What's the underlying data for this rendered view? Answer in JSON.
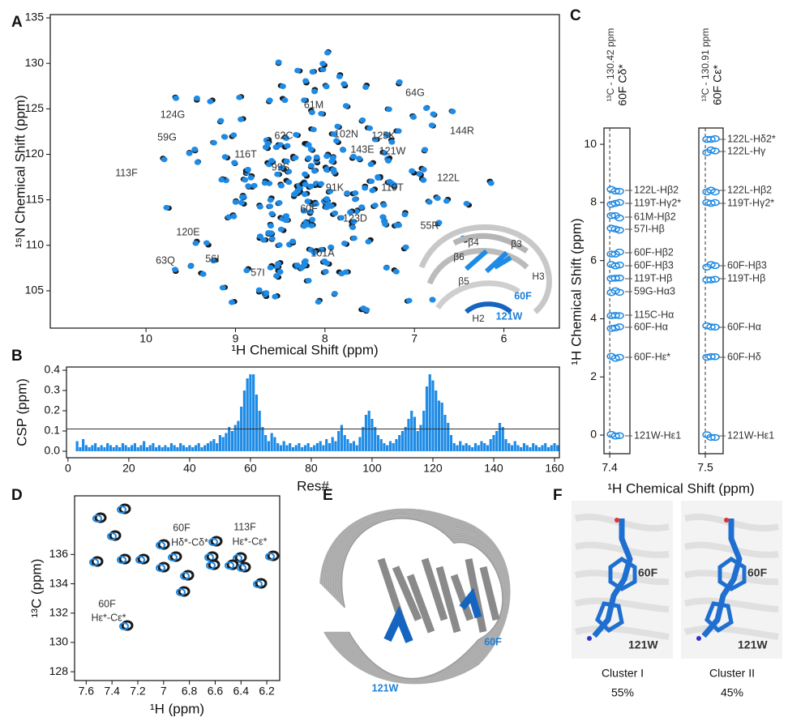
{
  "panel_labels": [
    "A",
    "B",
    "C",
    "D",
    "E",
    "F"
  ],
  "panel_a": {
    "xlabel": "¹H Chemical Shift (ppm)",
    "ylabel": "¹⁵N Chemical Shift (ppm)",
    "xlim": [
      11.07,
      5.38
    ],
    "ylim": [
      100.9,
      135.36
    ],
    "xticks": [
      10,
      9,
      8,
      7,
      6
    ],
    "yticks": [
      105,
      110,
      115,
      120,
      125,
      130,
      135
    ],
    "peak_labels": [
      "124G",
      "61M",
      "64G",
      "62C",
      "102N",
      "125K",
      "144R",
      "59G",
      "116T",
      "143E",
      "121W",
      "99S",
      "113F",
      "122L",
      "91K",
      "119T",
      "60F",
      "123D",
      "55R",
      "120E",
      "56I",
      "101A",
      "63Q",
      "57I"
    ],
    "inset_labels": [
      "β4",
      "β3",
      "β6",
      "β5",
      "H3",
      "H2"
    ],
    "inset_highlight": [
      "60F",
      "121W"
    ]
  },
  "chart_data": {
    "type": "bar",
    "xlabel": "Res#",
    "ylabel": "CSP (ppm)",
    "color": "#1e8be6",
    "xlim": [
      -0.5,
      161.6
    ],
    "ylim": [
      -0.032,
      0.416
    ],
    "xticks": [
      0,
      20,
      40,
      60,
      80,
      100,
      120,
      140,
      160
    ],
    "yticks": [
      {
        "value": 0,
        "label": "0.0"
      },
      {
        "value": 0.1,
        "label": "0.1"
      },
      {
        "value": 0.2,
        "label": "0.2"
      },
      {
        "value": 0.3,
        "label": "0.3"
      },
      {
        "value": 0.4,
        "label": "0.4"
      }
    ],
    "threshold": 0.11,
    "x": [
      3,
      4,
      5,
      6,
      7,
      8,
      9,
      10,
      11,
      12,
      13,
      14,
      15,
      16,
      17,
      18,
      19,
      20,
      21,
      22,
      23,
      24,
      25,
      26,
      27,
      28,
      29,
      30,
      31,
      32,
      33,
      34,
      35,
      36,
      37,
      38,
      39,
      40,
      41,
      42,
      43,
      44,
      45,
      46,
      47,
      48,
      49,
      50,
      51,
      52,
      53,
      54,
      55,
      56,
      57,
      58,
      59,
      60,
      61,
      62,
      63,
      64,
      65,
      66,
      67,
      68,
      69,
      70,
      71,
      72,
      73,
      74,
      75,
      76,
      77,
      78,
      79,
      80,
      81,
      82,
      83,
      84,
      85,
      86,
      87,
      88,
      89,
      90,
      91,
      92,
      93,
      94,
      95,
      96,
      97,
      98,
      99,
      100,
      101,
      102,
      103,
      104,
      105,
      106,
      107,
      108,
      109,
      110,
      111,
      112,
      113,
      114,
      115,
      116,
      117,
      118,
      119,
      120,
      121,
      122,
      123,
      124,
      125,
      126,
      127,
      128,
      129,
      130,
      131,
      132,
      133,
      134,
      135,
      136,
      137,
      138,
      139,
      140,
      141,
      142,
      143,
      144,
      145,
      146,
      147,
      148,
      149,
      150,
      151,
      152,
      153,
      154,
      155,
      156,
      157,
      158,
      159,
      160,
      161
    ],
    "values": [
      0.05,
      0.02,
      0.06,
      0.03,
      0.02,
      0.03,
      0.04,
      0.02,
      0.03,
      0.02,
      0.04,
      0.03,
      0.02,
      0.03,
      0.02,
      0.04,
      0.03,
      0.02,
      0.03,
      0.04,
      0.02,
      0.03,
      0.05,
      0.02,
      0.03,
      0.04,
      0.02,
      0.03,
      0.02,
      0.03,
      0.02,
      0.04,
      0.03,
      0.02,
      0.04,
      0.03,
      0.02,
      0.03,
      0.02,
      0.03,
      0.04,
      0.02,
      0.03,
      0.04,
      0.05,
      0.06,
      0.04,
      0.08,
      0.07,
      0.09,
      0.12,
      0.1,
      0.13,
      0.15,
      0.22,
      0.3,
      0.36,
      0.38,
      0.38,
      0.28,
      0.2,
      0.12,
      0.08,
      0.05,
      0.09,
      0.07,
      0.04,
      0.03,
      0.05,
      0.03,
      0.04,
      0.02,
      0.03,
      0.04,
      0.02,
      0.03,
      0.04,
      0.02,
      0.03,
      0.04,
      0.05,
      0.03,
      0.06,
      0.04,
      0.07,
      0.05,
      0.1,
      0.13,
      0.08,
      0.06,
      0.04,
      0.05,
      0.03,
      0.07,
      0.12,
      0.18,
      0.2,
      0.16,
      0.12,
      0.08,
      0.06,
      0.04,
      0.03,
      0.05,
      0.04,
      0.06,
      0.08,
      0.1,
      0.12,
      0.16,
      0.2,
      0.17,
      0.1,
      0.13,
      0.2,
      0.32,
      0.38,
      0.35,
      0.3,
      0.25,
      0.24,
      0.18,
      0.14,
      0.08,
      0.04,
      0.03,
      0.05,
      0.03,
      0.04,
      0.03,
      0.02,
      0.04,
      0.03,
      0.05,
      0.04,
      0.03,
      0.06,
      0.08,
      0.1,
      0.14,
      0.12,
      0.06,
      0.04,
      0.03,
      0.05,
      0.03,
      0.02,
      0.04,
      0.03,
      0.02,
      0.04,
      0.03,
      0.02,
      0.03,
      0.04,
      0.02,
      0.03,
      0.04,
      0.03
    ]
  },
  "panel_c": {
    "xlabel": "¹H Chemical Shift (ppm)",
    "ylabel": "¹H Chemical Shift (ppm)",
    "ylim": [
      -0.64,
      10.56
    ],
    "yticks": [
      0,
      2,
      4,
      6,
      8,
      10
    ],
    "strips": [
      {
        "title": "¹³C - 130.42 ppm",
        "atom": "60F Cδ*",
        "xlim": [
          7.42,
          7.33
        ],
        "xtick": 7.4,
        "labels": [
          "122L-Hβ2",
          "119T-Hγ2*",
          "61M-Hβ2",
          "57I-Hβ",
          "60F-Hβ2",
          "60F-Hβ3",
          "119T-Hβ",
          "59G-Hα3",
          "115C-Hα",
          "60F-Hα",
          "60F-Hε*",
          "121W-Hε1"
        ]
      },
      {
        "title": "¹³C - 130.91 ppm",
        "atom": "60F Cε*",
        "xlim": [
          7.52,
          7.445
        ],
        "xtick": 7.5,
        "labels": [
          "122L-Hδ2*",
          "122L-Hγ",
          "122L-Hβ2",
          "119T-Hγ2*",
          "60F-Hβ3",
          "119T-Hβ",
          "60F-Hα",
          "60F-Hδ",
          "121W-Hε1"
        ]
      }
    ]
  },
  "panel_d": {
    "xlabel": "¹H (ppm)",
    "ylabel": "¹³C (ppm)",
    "xlim": [
      7.69,
      6.1
    ],
    "ylim": [
      127.4,
      140
    ],
    "xticks": [
      7.6,
      7.4,
      7.2,
      7,
      6.8,
      6.6,
      6.4,
      6.2
    ],
    "yticks": [
      128,
      130,
      132,
      134,
      136
    ],
    "labels": [
      "60F",
      "Hδ*-Cδ*",
      "113F",
      "Hε*-Cε*",
      "60F",
      "Hε*-Cε*"
    ]
  },
  "panel_e": {
    "labels": [
      "121W",
      "60F"
    ]
  },
  "panel_f": {
    "clusters": [
      {
        "name": "Cluster I",
        "percent": "55%",
        "labels": [
          "60F",
          "121W"
        ]
      },
      {
        "name": "Cluster II",
        "percent": "45%",
        "labels": [
          "60F",
          "121W"
        ]
      }
    ]
  }
}
